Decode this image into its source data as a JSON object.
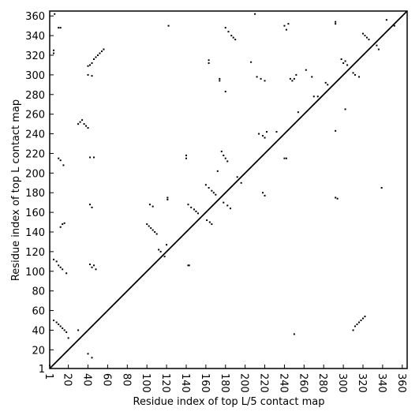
{
  "chart_data": {
    "type": "scatter",
    "x_label": "Residue index of top L/5 contact map",
    "y_label": "Residue index of top L contact map",
    "xlim": [
      1,
      365
    ],
    "ylim": [
      1,
      365
    ],
    "xticks": [
      1,
      20,
      40,
      60,
      80,
      100,
      120,
      140,
      160,
      180,
      200,
      220,
      240,
      260,
      280,
      300,
      320,
      340,
      360
    ],
    "yticks": [
      1,
      20,
      40,
      60,
      80,
      100,
      120,
      140,
      160,
      180,
      200,
      220,
      240,
      260,
      280,
      300,
      320,
      340,
      360
    ],
    "line": {
      "color": "#000000",
      "x": [
        1,
        365
      ],
      "y": [
        1,
        365
      ]
    },
    "series": [
      {
        "color": "#000000",
        "x": [
          6,
          5,
          5,
          10,
          12,
          40,
          42,
          44,
          46,
          48,
          50,
          52,
          54,
          56,
          44,
          40,
          30,
          32,
          34,
          36,
          38,
          40,
          10,
          12,
          15,
          42,
          46,
          42,
          44,
          12,
          14,
          16,
          5,
          8,
          10,
          12,
          14,
          18,
          42,
          44,
          48,
          46,
          5,
          8,
          10,
          12,
          14,
          16,
          18,
          20,
          30,
          40,
          44,
          1,
          122,
          121,
          121,
          100,
          102,
          104,
          106,
          108,
          110,
          112,
          114,
          118,
          120,
          103,
          106,
          142,
          143,
          140,
          140,
          145,
          148,
          150,
          152,
          142,
          160,
          163,
          166,
          168,
          170,
          172,
          161,
          164,
          166,
          163,
          163,
          174,
          174,
          176,
          178,
          180,
          182,
          178,
          182,
          185,
          180,
          183,
          186,
          188,
          190,
          180,
          192,
          196,
          206,
          210,
          212,
          216,
          220,
          214,
          218,
          220,
          222,
          218,
          220,
          232,
          240,
          242,
          244,
          246,
          248,
          250,
          252,
          240,
          242,
          250,
          254,
          262,
          268,
          270,
          274,
          282,
          284,
          292,
          292,
          292,
          292,
          294,
          298,
          300,
          302,
          304,
          302,
          310,
          312,
          316,
          320,
          322,
          324,
          326,
          334,
          336,
          339,
          344,
          352,
          310,
          312,
          314,
          316,
          318,
          320,
          322
        ],
        "y": [
          362,
          325,
          322,
          348,
          348,
          300,
          310,
          312,
          316,
          318,
          320,
          322,
          324,
          326,
          299,
          309,
          250,
          252,
          254,
          250,
          248,
          246,
          215,
          213,
          208,
          216,
          216,
          168,
          165,
          145,
          148,
          149,
          112,
          110,
          106,
          104,
          102,
          98,
          107,
          104,
          102,
          106,
          50,
          48,
          46,
          44,
          42,
          40,
          38,
          32,
          40,
          16,
          12,
          4,
          350,
          175,
          173,
          148,
          146,
          144,
          142,
          140,
          138,
          122,
          120,
          115,
          127,
          168,
          166,
          106,
          106,
          218,
          215,
          165,
          163,
          161,
          159,
          168,
          188,
          185,
          182,
          180,
          178,
          202,
          152,
          150,
          148,
          315,
          312,
          296,
          294,
          222,
          218,
          215,
          212,
          170,
          167,
          164,
          348,
          344,
          340,
          338,
          336,
          283,
          196,
          190,
          313,
          362,
          298,
          296,
          294,
          240,
          238,
          236,
          242,
          180,
          177,
          242,
          350,
          346,
          352,
          296,
          294,
          296,
          300,
          215,
          215,
          36,
          262,
          305,
          298,
          278,
          278,
          292,
          290,
          354,
          352,
          243,
          175,
          174,
          316,
          312,
          314,
          310,
          265,
          302,
          300,
          298,
          342,
          340,
          338,
          336,
          330,
          326,
          185,
          356,
          350,
          40,
          44,
          46,
          48,
          50,
          52,
          54
        ]
      }
    ]
  }
}
